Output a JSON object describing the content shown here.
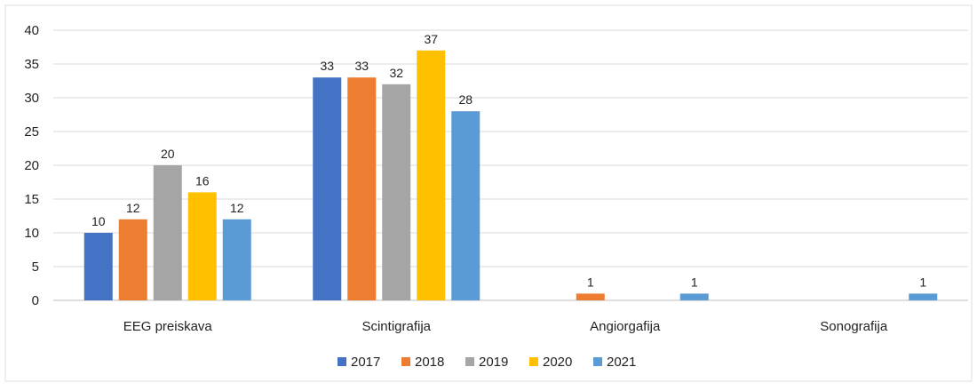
{
  "chart_data": {
    "type": "bar",
    "categories": [
      "EEG preiskava",
      "Scintigrafija",
      "Angiorgafija",
      "Sonografija"
    ],
    "series": [
      {
        "name": "2017",
        "color": "#4472C4",
        "values": [
          10,
          33,
          0,
          0
        ],
        "labels": [
          "10",
          "33",
          "",
          ""
        ]
      },
      {
        "name": "2018",
        "color": "#ED7D31",
        "values": [
          12,
          33,
          1,
          0
        ],
        "labels": [
          "12",
          "33",
          "1",
          ""
        ]
      },
      {
        "name": "2019",
        "color": "#A5A5A5",
        "values": [
          20,
          32,
          0,
          0
        ],
        "labels": [
          "20",
          "32",
          "",
          ""
        ]
      },
      {
        "name": "2020",
        "color": "#FFC000",
        "values": [
          16,
          37,
          0,
          0
        ],
        "labels": [
          "16",
          "37",
          "",
          ""
        ]
      },
      {
        "name": "2021",
        "color": "#5B9BD5",
        "values": [
          12,
          28,
          1,
          1
        ],
        "labels": [
          "12",
          "28",
          "1",
          "1"
        ]
      }
    ],
    "yticks": [
      "0",
      "5",
      "10",
      "15",
      "20",
      "25",
      "30",
      "35",
      "40"
    ],
    "ylim": [
      0,
      40
    ],
    "grid": true,
    "legend": "bottom"
  }
}
